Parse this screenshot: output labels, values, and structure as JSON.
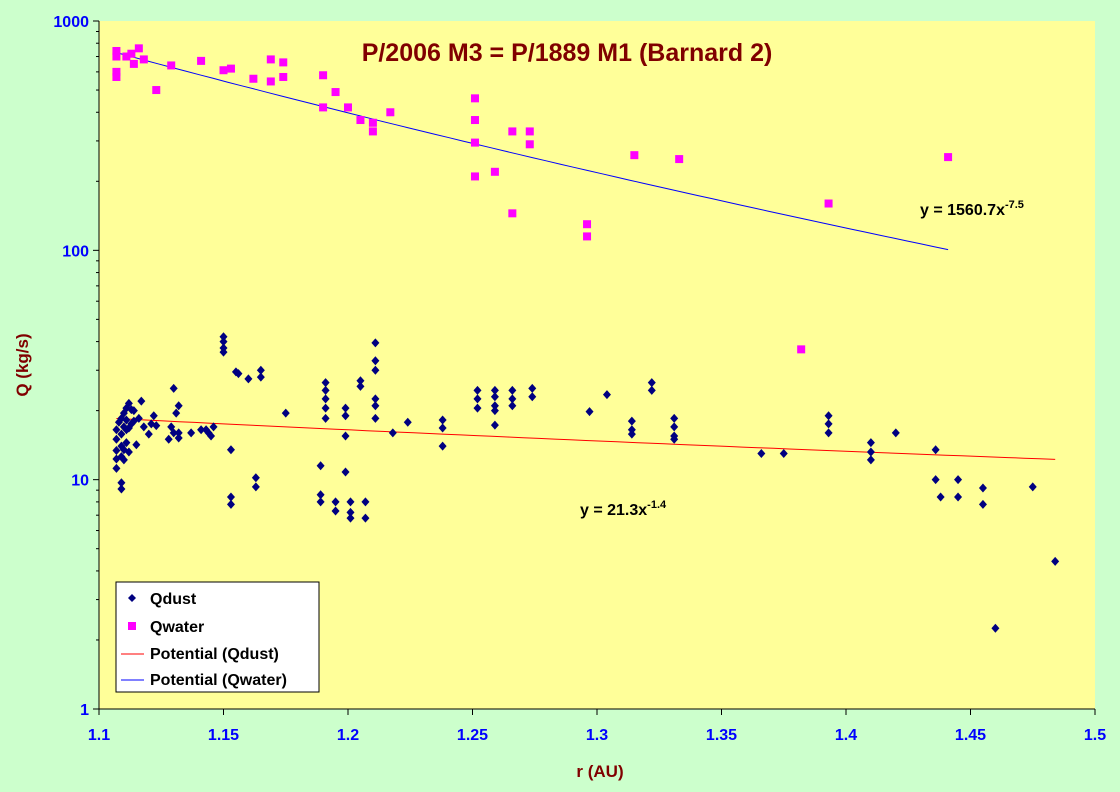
{
  "chart_data": {
    "type": "scatter",
    "title": "P/2006 M3 = P/1889 M1 (Barnard 2)",
    "xlabel": "r (AU)",
    "ylabel": "Q (kg/s)",
    "xlim": [
      1.1,
      1.5
    ],
    "ylim": [
      1,
      1000
    ],
    "y_scale": "log",
    "x_ticks": [
      "1.1",
      "1.15",
      "1.2",
      "1.25",
      "1.3",
      "1.35",
      "1.4",
      "1.45",
      "1.5"
    ],
    "y_ticks": [
      "1",
      "10",
      "100",
      "1000"
    ],
    "grid": false,
    "legend_position": "bottom-left",
    "colors": {
      "outer_background": "#ccffcc",
      "plot_background": "#ffff99",
      "dust": "#000080",
      "water": "#ff00ff",
      "dust_trend": "#ff0000",
      "water_trend": "#0000ff",
      "title": "#800000",
      "axis_label": "#800000",
      "tick_label": "#0000ff"
    },
    "series": [
      {
        "name": "Qdust",
        "marker": "diamond",
        "points": [
          [
            1.107,
            11.2
          ],
          [
            1.107,
            12.3
          ],
          [
            1.107,
            13.4
          ],
          [
            1.107,
            15.0
          ],
          [
            1.107,
            16.5
          ],
          [
            1.108,
            17.8
          ],
          [
            1.109,
            9.1
          ],
          [
            1.109,
            9.7
          ],
          [
            1.109,
            12.6
          ],
          [
            1.109,
            14.0
          ],
          [
            1.109,
            15.8
          ],
          [
            1.109,
            18.5
          ],
          [
            1.11,
            12.2
          ],
          [
            1.11,
            13.5
          ],
          [
            1.11,
            17.0
          ],
          [
            1.11,
            19.5
          ],
          [
            1.111,
            14.5
          ],
          [
            1.111,
            16.5
          ],
          [
            1.111,
            18.2
          ],
          [
            1.111,
            20.5
          ],
          [
            1.112,
            13.2
          ],
          [
            1.112,
            16.8
          ],
          [
            1.112,
            21.5
          ],
          [
            1.113,
            17.5
          ],
          [
            1.113,
            20.2
          ],
          [
            1.114,
            18.0
          ],
          [
            1.114,
            20.0
          ],
          [
            1.115,
            14.2
          ],
          [
            1.116,
            18.5
          ],
          [
            1.117,
            22.0
          ],
          [
            1.118,
            17.0
          ],
          [
            1.12,
            15.8
          ],
          [
            1.121,
            17.5
          ],
          [
            1.122,
            19.0
          ],
          [
            1.123,
            17.2
          ],
          [
            1.128,
            15.0
          ],
          [
            1.129,
            17.0
          ],
          [
            1.13,
            25.0
          ],
          [
            1.13,
            16.0
          ],
          [
            1.131,
            19.5
          ],
          [
            1.132,
            21.0
          ],
          [
            1.132,
            16.0
          ],
          [
            1.132,
            15.2
          ],
          [
            1.137,
            16.0
          ],
          [
            1.141,
            16.5
          ],
          [
            1.143,
            16.5
          ],
          [
            1.144,
            16.0
          ],
          [
            1.145,
            15.5
          ],
          [
            1.146,
            17.0
          ],
          [
            1.15,
            42.0
          ],
          [
            1.15,
            40.0
          ],
          [
            1.15,
            37.5
          ],
          [
            1.15,
            36.0
          ],
          [
            1.153,
            13.5
          ],
          [
            1.153,
            8.4
          ],
          [
            1.153,
            7.8
          ],
          [
            1.155,
            29.5
          ],
          [
            1.156,
            29.0
          ],
          [
            1.16,
            27.5
          ],
          [
            1.163,
            10.2
          ],
          [
            1.163,
            9.3
          ],
          [
            1.165,
            30.0
          ],
          [
            1.165,
            28.0
          ],
          [
            1.175,
            19.5
          ],
          [
            1.189,
            11.5
          ],
          [
            1.189,
            8.6
          ],
          [
            1.189,
            8.0
          ],
          [
            1.191,
            26.5
          ],
          [
            1.191,
            24.5
          ],
          [
            1.191,
            22.5
          ],
          [
            1.191,
            20.5
          ],
          [
            1.191,
            18.5
          ],
          [
            1.195,
            8.0
          ],
          [
            1.195,
            7.3
          ],
          [
            1.199,
            20.5
          ],
          [
            1.199,
            19.0
          ],
          [
            1.199,
            15.5
          ],
          [
            1.199,
            10.8
          ],
          [
            1.201,
            8.0
          ],
          [
            1.201,
            7.2
          ],
          [
            1.201,
            6.8
          ],
          [
            1.205,
            27.0
          ],
          [
            1.205,
            25.5
          ],
          [
            1.207,
            8.0
          ],
          [
            1.207,
            6.8
          ],
          [
            1.211,
            39.5
          ],
          [
            1.211,
            33.0
          ],
          [
            1.211,
            30.0
          ],
          [
            1.211,
            22.5
          ],
          [
            1.211,
            21.0
          ],
          [
            1.211,
            18.5
          ],
          [
            1.218,
            16.0
          ],
          [
            1.224,
            17.8
          ],
          [
            1.238,
            18.2
          ],
          [
            1.238,
            16.8
          ],
          [
            1.238,
            14.0
          ],
          [
            1.252,
            24.5
          ],
          [
            1.252,
            22.5
          ],
          [
            1.252,
            20.5
          ],
          [
            1.259,
            24.5
          ],
          [
            1.259,
            23.0
          ],
          [
            1.259,
            21.0
          ],
          [
            1.259,
            20.0
          ],
          [
            1.259,
            17.3
          ],
          [
            1.266,
            24.5
          ],
          [
            1.266,
            22.5
          ],
          [
            1.266,
            21.0
          ],
          [
            1.274,
            25.0
          ],
          [
            1.274,
            23.0
          ],
          [
            1.297,
            19.8
          ],
          [
            1.304,
            23.5
          ],
          [
            1.314,
            18.0
          ],
          [
            1.314,
            16.5
          ],
          [
            1.314,
            15.8
          ],
          [
            1.322,
            26.5
          ],
          [
            1.322,
            24.5
          ],
          [
            1.331,
            18.5
          ],
          [
            1.331,
            17.0
          ],
          [
            1.331,
            15.5
          ],
          [
            1.331,
            15.0
          ],
          [
            1.366,
            13.0
          ],
          [
            1.375,
            13.0
          ],
          [
            1.393,
            19.0
          ],
          [
            1.393,
            17.5
          ],
          [
            1.393,
            16.0
          ],
          [
            1.41,
            14.5
          ],
          [
            1.41,
            13.2
          ],
          [
            1.41,
            12.2
          ],
          [
            1.42,
            16.0
          ],
          [
            1.436,
            13.5
          ],
          [
            1.436,
            10.0
          ],
          [
            1.438,
            8.4
          ],
          [
            1.445,
            10.0
          ],
          [
            1.445,
            8.4
          ],
          [
            1.455,
            9.2
          ],
          [
            1.455,
            7.8
          ],
          [
            1.46,
            2.25
          ],
          [
            1.475,
            9.3
          ],
          [
            1.484,
            4.4
          ]
        ]
      },
      {
        "name": "Qwater",
        "marker": "square",
        "points": [
          [
            1.107,
            740
          ],
          [
            1.107,
            700
          ],
          [
            1.107,
            600
          ],
          [
            1.107,
            570
          ],
          [
            1.111,
            700
          ],
          [
            1.113,
            720
          ],
          [
            1.114,
            650
          ],
          [
            1.116,
            760
          ],
          [
            1.118,
            680
          ],
          [
            1.123,
            500
          ],
          [
            1.129,
            640
          ],
          [
            1.141,
            670
          ],
          [
            1.15,
            610
          ],
          [
            1.153,
            620
          ],
          [
            1.162,
            560
          ],
          [
            1.169,
            680
          ],
          [
            1.169,
            545
          ],
          [
            1.174,
            660
          ],
          [
            1.174,
            570
          ],
          [
            1.19,
            580
          ],
          [
            1.19,
            420
          ],
          [
            1.195,
            490
          ],
          [
            1.2,
            420
          ],
          [
            1.205,
            370
          ],
          [
            1.21,
            360
          ],
          [
            1.21,
            330
          ],
          [
            1.217,
            400
          ],
          [
            1.251,
            460
          ],
          [
            1.251,
            370
          ],
          [
            1.251,
            295
          ],
          [
            1.251,
            210
          ],
          [
            1.259,
            220
          ],
          [
            1.266,
            330
          ],
          [
            1.266,
            145
          ],
          [
            1.273,
            330
          ],
          [
            1.273,
            290
          ],
          [
            1.296,
            130
          ],
          [
            1.296,
            115
          ],
          [
            1.315,
            260
          ],
          [
            1.333,
            250
          ],
          [
            1.382,
            37
          ],
          [
            1.393,
            160
          ],
          [
            1.441,
            255
          ]
        ]
      },
      {
        "name": "Potential (Qdust)",
        "type": "line",
        "fit": {
          "a": 21.3,
          "b": -1.4
        },
        "x_range": [
          1.107,
          1.484
        ],
        "equation_label": {
          "prefix": "y = 21.3x",
          "exponent": "-1.4"
        }
      },
      {
        "name": "Potential (Qwater)",
        "type": "line",
        "fit": {
          "a": 1560.7,
          "b": -7.5
        },
        "x_range": [
          1.107,
          1.441
        ],
        "equation_label": {
          "prefix": "y = 1560.7x",
          "exponent": "-7.5"
        }
      }
    ]
  }
}
